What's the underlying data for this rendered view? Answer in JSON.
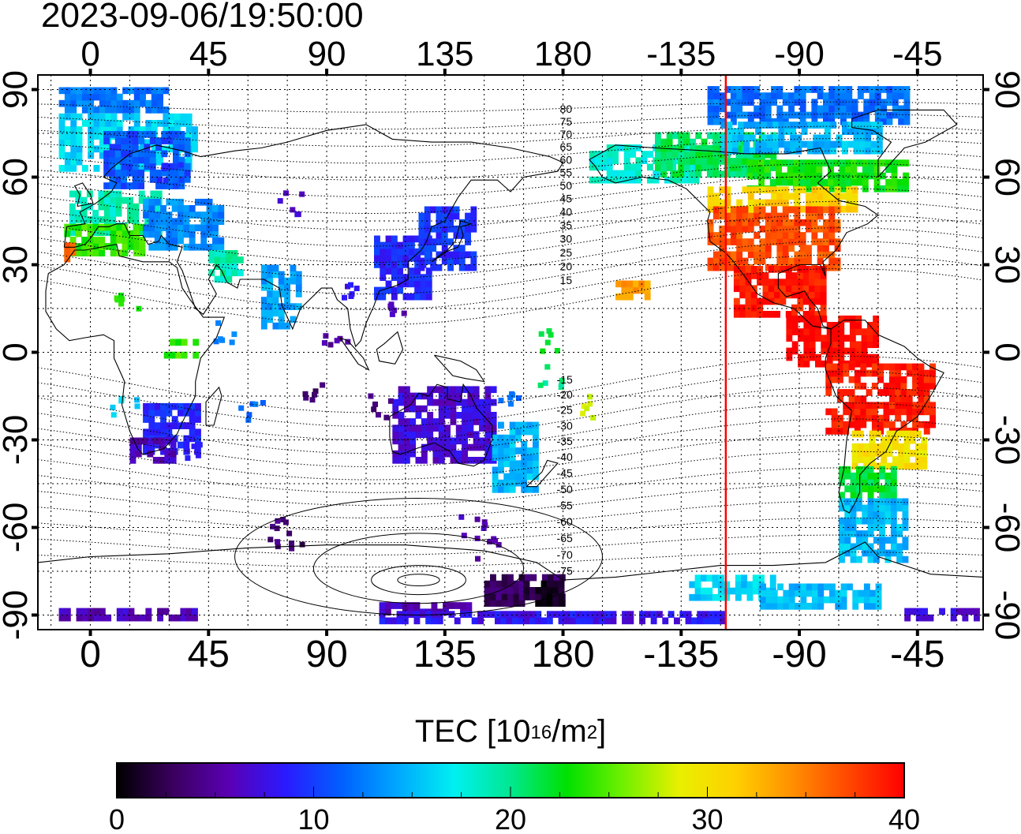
{
  "title": "2023-09-06/19:50:00",
  "map": {
    "projection": "equirectangular",
    "lon_range": [
      -20,
      340
    ],
    "lat_range": [
      -95,
      95
    ],
    "lon_ticks_top": [
      "0",
      "45",
      "90",
      "135",
      "180",
      "-135",
      "-90",
      "-45"
    ],
    "lon_ticks_bottom": [
      "0",
      "45",
      "90",
      "135",
      "180",
      "-135",
      "-90",
      "-45"
    ],
    "lon_tick_values": [
      0,
      45,
      90,
      135,
      180,
      225,
      270,
      315
    ],
    "lat_ticks_left": [
      "90",
      "60",
      "30",
      "0",
      "-30",
      "-60",
      "-90"
    ],
    "lat_ticks_right": [
      "90",
      "60",
      "30",
      "0",
      "-30",
      "-60",
      "-90"
    ],
    "lat_tick_values": [
      90,
      60,
      30,
      0,
      -30,
      -60,
      -90
    ],
    "grid": true,
    "terminator_lon": 242,
    "terminator_color": "#ff0000",
    "magnetic_lat_labels_north": [
      "80",
      "75",
      "70",
      "65",
      "60",
      "55",
      "50",
      "45",
      "40",
      "35",
      "30",
      "25",
      "20",
      "15"
    ],
    "magnetic_lat_labels_south": [
      "-15",
      "-20",
      "-25",
      "-30",
      "-35",
      "-40",
      "-45",
      "-50",
      "-55",
      "-60",
      "-65",
      "-70",
      "-75"
    ]
  },
  "colorbar": {
    "label_prefix": "TEC  [10",
    "label_exp1": "16",
    "label_mid": "/m",
    "label_exp2": "2",
    "label_suffix": "]",
    "min": 0,
    "max": 40,
    "tick_labels": [
      "0",
      "10",
      "20",
      "30",
      "40"
    ],
    "tick_values": [
      0,
      10,
      20,
      30,
      40
    ],
    "palette": [
      "#000000",
      "#3a005e",
      "#5a00b4",
      "#2a1aff",
      "#0060ff",
      "#00a8ff",
      "#00f0f0",
      "#00e890",
      "#00e000",
      "#70f000",
      "#e8f000",
      "#ffd000",
      "#ff9000",
      "#ff4800",
      "#ff0000"
    ]
  },
  "tec_regions": [
    {
      "lon": [
        -12,
        28
      ],
      "lat": [
        82,
        90
      ],
      "tec": 12.5
    },
    {
      "lon": [
        -12,
        40
      ],
      "lat": [
        62,
        80
      ],
      "tec": 16
    },
    {
      "lon": [
        5,
        38
      ],
      "lat": [
        56,
        74
      ],
      "tec": 11
    },
    {
      "lon": [
        -8,
        25
      ],
      "lat": [
        40,
        55
      ],
      "tec": 19
    },
    {
      "lon": [
        -10,
        20
      ],
      "lat": [
        33,
        42
      ],
      "tec": 24
    },
    {
      "lon": [
        -10,
        -6
      ],
      "lat": [
        31,
        36
      ],
      "tec": 37
    },
    {
      "lon": [
        20,
        50
      ],
      "lat": [
        35,
        52
      ],
      "tec": 13
    },
    {
      "lon": [
        45,
        58
      ],
      "lat": [
        24,
        34
      ],
      "tec": 19
    },
    {
      "lon": [
        65,
        80
      ],
      "lat": [
        8,
        28
      ],
      "tec": 14
    },
    {
      "lon": [
        108,
        130
      ],
      "lat": [
        18,
        38
      ],
      "tec": 9
    },
    {
      "lon": [
        125,
        145
      ],
      "lat": [
        28,
        50
      ],
      "tec": 9.5
    },
    {
      "lon": [
        20,
        40
      ],
      "lat": [
        -35,
        -18
      ],
      "tec": 9
    },
    {
      "lon": [
        15,
        32
      ],
      "lat": [
        -38,
        -30
      ],
      "tec": 6
    },
    {
      "lon": [
        28,
        40
      ],
      "lat": [
        -2,
        4
      ],
      "tec": 24
    },
    {
      "lon": [
        115,
        153
      ],
      "lat": [
        -38,
        -12
      ],
      "tec": 7
    },
    {
      "lon": [
        153,
        170
      ],
      "lat": [
        -48,
        -25
      ],
      "tec": 15
    },
    {
      "lon": [
        150,
        180
      ],
      "lat": [
        -87,
        -78
      ],
      "tec": 3
    },
    {
      "lon": [
        165,
        180
      ],
      "lat": [
        -87,
        -80
      ],
      "tec": 1
    },
    {
      "lon": [
        110,
        145
      ],
      "lat": [
        -90,
        -86
      ],
      "tec": 6
    },
    {
      "lon": [
        -12,
        40
      ],
      "lat": [
        -92,
        -88
      ],
      "tec": 6
    },
    {
      "lon": [
        110,
        240
      ],
      "lat": [
        -93,
        -90
      ],
      "tec": 8
    },
    {
      "lon": [
        190,
        230
      ],
      "lat": [
        58,
        70
      ],
      "tec": 18
    },
    {
      "lon": [
        215,
        260
      ],
      "lat": [
        60,
        75
      ],
      "tec": 21
    },
    {
      "lon": [
        235,
        310
      ],
      "lat": [
        78,
        90
      ],
      "tec": 12
    },
    {
      "lon": [
        240,
        300
      ],
      "lat": [
        68,
        78
      ],
      "tec": 15
    },
    {
      "lon": [
        250,
        310
      ],
      "lat": [
        55,
        65
      ],
      "tec": 23
    },
    {
      "lon": [
        235,
        290
      ],
      "lat": [
        48,
        56
      ],
      "tec": 31
    },
    {
      "lon": [
        235,
        285
      ],
      "lat": [
        28,
        48
      ],
      "tec": 37
    },
    {
      "lon": [
        245,
        280
      ],
      "lat": [
        12,
        28
      ],
      "tec": 39
    },
    {
      "lon": [
        265,
        300
      ],
      "lat": [
        -5,
        12
      ],
      "tec": 40
    },
    {
      "lon": [
        280,
        320
      ],
      "lat": [
        -28,
        -5
      ],
      "tec": 39
    },
    {
      "lon": [
        290,
        318
      ],
      "lat": [
        -40,
        -28
      ],
      "tec": 30
    },
    {
      "lon": [
        285,
        305
      ],
      "lat": [
        -50,
        -40
      ],
      "tec": 22
    },
    {
      "lon": [
        285,
        310
      ],
      "lat": [
        -72,
        -50
      ],
      "tec": 15
    },
    {
      "lon": [
        200,
        212
      ],
      "lat": [
        18,
        24
      ],
      "tec": 34
    },
    {
      "lon": [
        228,
        260
      ],
      "lat": [
        -85,
        -78
      ],
      "tec": 16
    },
    {
      "lon": [
        255,
        300
      ],
      "lat": [
        -88,
        -80
      ],
      "tec": 15
    },
    {
      "lon": [
        310,
        338
      ],
      "lat": [
        -92,
        -88
      ],
      "tec": 7
    }
  ]
}
